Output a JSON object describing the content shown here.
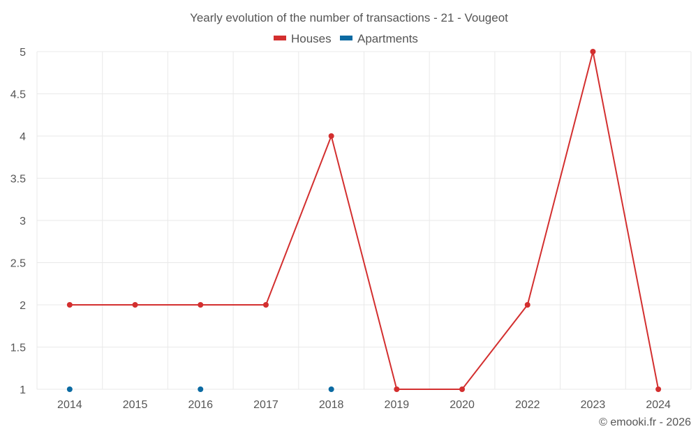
{
  "chart_data": {
    "type": "line",
    "title": "Yearly evolution of the number of transactions - 21 - Vougeot",
    "categories": [
      "2014",
      "2015",
      "2016",
      "2017",
      "2018",
      "2019",
      "2020",
      "2022",
      "2023",
      "2024"
    ],
    "ylim": [
      1,
      5
    ],
    "yticks": [
      "1",
      "1.5",
      "2",
      "2.5",
      "3",
      "3.5",
      "4",
      "4.5",
      "5"
    ],
    "grid": true,
    "legend_position": "top-center",
    "series": [
      {
        "name": "Houses",
        "color": "#d32f2f",
        "values": [
          2,
          2,
          2,
          2,
          4,
          1,
          1,
          2,
          5,
          1
        ]
      },
      {
        "name": "Apartments",
        "color": "#0b6aa2",
        "values": [
          1,
          null,
          1,
          null,
          1,
          null,
          null,
          null,
          null,
          null
        ]
      }
    ],
    "xlabel": "",
    "ylabel": ""
  },
  "credit": "© emooki.fr - 2026"
}
